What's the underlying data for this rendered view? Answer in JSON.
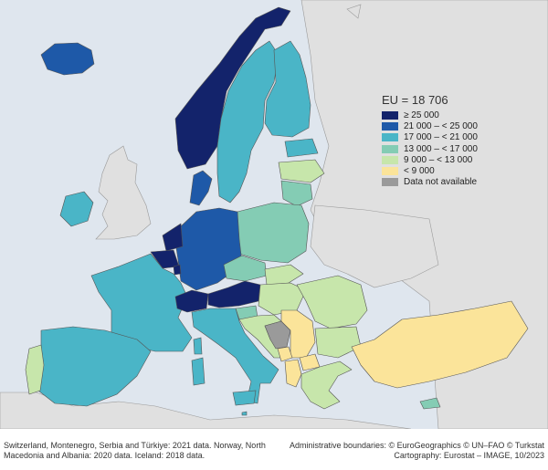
{
  "legend": {
    "title": "EU = 18 706",
    "items": [
      {
        "label": "≥ 25 000",
        "color": "#13236b"
      },
      {
        "label": "21 000 – < 25 000",
        "color": "#1e59a8"
      },
      {
        "label": "17 000 – < 21 000",
        "color": "#4ab5c7"
      },
      {
        "label": "13 000 – < 17 000",
        "color": "#84ccb4"
      },
      {
        "label": "9 000 – < 13 000",
        "color": "#c7e6ab"
      },
      {
        "label": "< 9 000",
        "color": "#fbe49a"
      },
      {
        "label": "Data not available",
        "color": "#9a9a9a"
      }
    ]
  },
  "footnote_left": "Switzerland, Montenegro, Serbia and Türkiye: 2021 data. Norway, North Macedonia and Albania: 2020 data. Iceland: 2018 data.",
  "footnote_right": "Administrative boundaries: © EuroGeographics © UN–FAO © Turkstat Cartography: Eurostat – IMAGE, 10/2023",
  "colors": {
    "sea": "#dfe6ee",
    "non_eu": "#e0e0e0",
    "border": "#666666"
  },
  "countries": [
    {
      "id": "iceland",
      "band": 1
    },
    {
      "id": "norway",
      "band": 0
    },
    {
      "id": "sweden",
      "band": 2
    },
    {
      "id": "finland",
      "band": 2
    },
    {
      "id": "denmark",
      "band": 1
    },
    {
      "id": "ireland",
      "band": 2
    },
    {
      "id": "estonia",
      "band": 2
    },
    {
      "id": "latvia",
      "band": 4
    },
    {
      "id": "lithuania",
      "band": 3
    },
    {
      "id": "poland",
      "band": 3
    },
    {
      "id": "germany",
      "band": 1
    },
    {
      "id": "netherlands",
      "band": 0
    },
    {
      "id": "belgium",
      "band": 0
    },
    {
      "id": "luxembourg",
      "band": 0
    },
    {
      "id": "france",
      "band": 2
    },
    {
      "id": "switzerland",
      "band": 0
    },
    {
      "id": "austria",
      "band": 0
    },
    {
      "id": "czechia",
      "band": 3
    },
    {
      "id": "slovakia",
      "band": 4
    },
    {
      "id": "hungary",
      "band": 4
    },
    {
      "id": "slovenia",
      "band": 3
    },
    {
      "id": "croatia",
      "band": 4
    },
    {
      "id": "bosnia",
      "band": 6
    },
    {
      "id": "serbia",
      "band": 5
    },
    {
      "id": "montenegro",
      "band": 5
    },
    {
      "id": "albania",
      "band": 5
    },
    {
      "id": "north-macedonia",
      "band": 5
    },
    {
      "id": "romania",
      "band": 4
    },
    {
      "id": "bulgaria",
      "band": 4
    },
    {
      "id": "greece",
      "band": 4
    },
    {
      "id": "turkiye",
      "band": 5
    },
    {
      "id": "italy",
      "band": 2
    },
    {
      "id": "spain",
      "band": 2
    },
    {
      "id": "portugal",
      "band": 4
    },
    {
      "id": "cyprus",
      "band": 3
    },
    {
      "id": "malta",
      "band": 2
    }
  ]
}
